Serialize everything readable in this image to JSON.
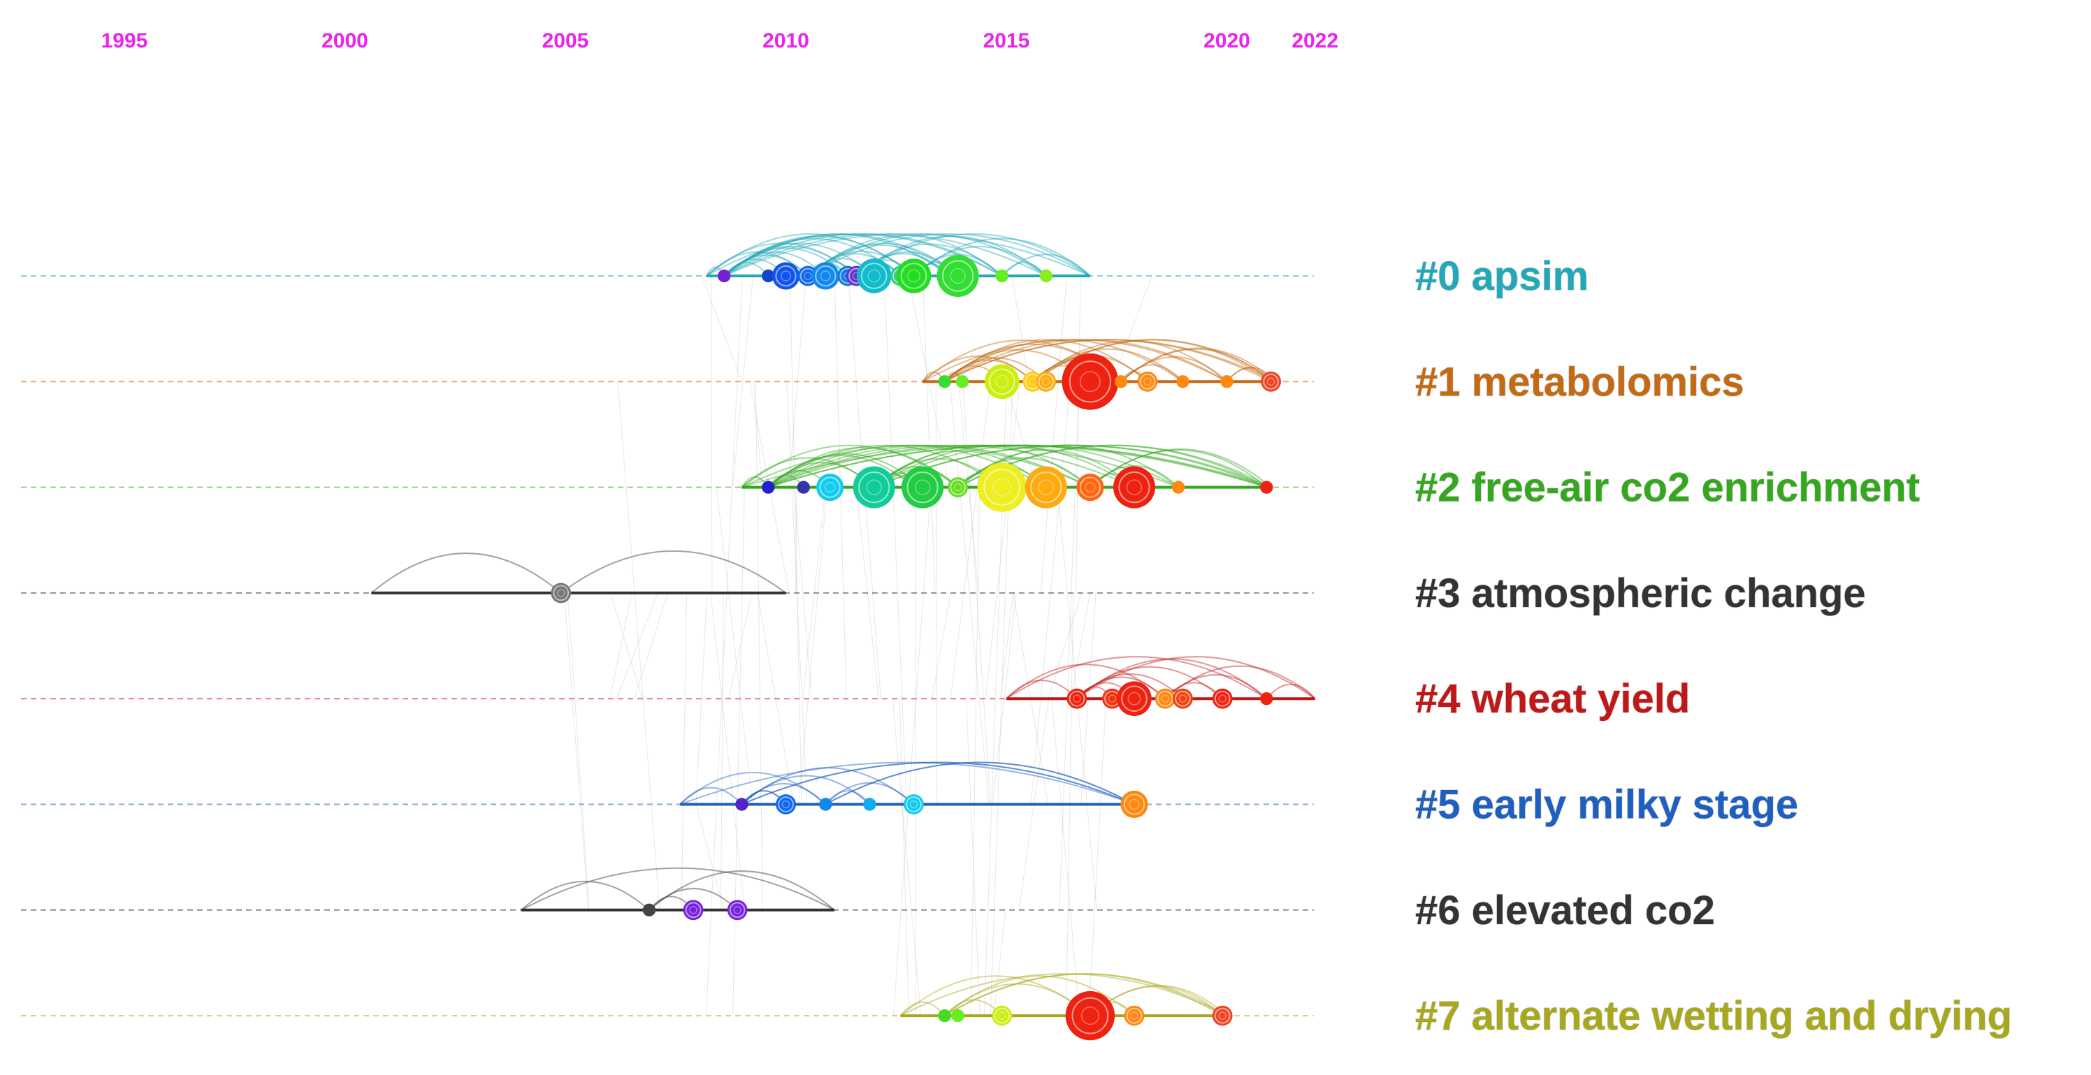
{
  "chart_data": {
    "type": "timeline",
    "x_axis": {
      "ticks": [
        "1995",
        "2000",
        "2005",
        "2010",
        "2015",
        "2020",
        "2022"
      ],
      "range": [
        1993,
        2022
      ],
      "tick_color": "#ee22ee"
    },
    "clusters": [
      {
        "id": "0",
        "label": "#0 apsim",
        "color": "#23a8b8",
        "span": [
          2008.2,
          2016.9
        ],
        "nodes": [
          {
            "year": 2008.6,
            "size": 1,
            "color": "#7722cc"
          },
          {
            "year": 2009.6,
            "size": 1,
            "color": "#1144cc"
          },
          {
            "year": 2010,
            "size": 3,
            "color": "#1155ee"
          },
          {
            "year": 2010.5,
            "size": 2,
            "color": "#1166ee"
          },
          {
            "year": 2010.9,
            "size": 3,
            "color": "#1188ee"
          },
          {
            "year": 2011.4,
            "size": 2,
            "color": "#1177dd"
          },
          {
            "year": 2011.6,
            "size": 2,
            "color": "#6633cc"
          },
          {
            "year": 2012,
            "size": 4,
            "color": "#11bbcc"
          },
          {
            "year": 2012.6,
            "size": 2,
            "color": "#33cc88"
          },
          {
            "year": 2012.9,
            "size": 4,
            "color": "#22dd22"
          },
          {
            "year": 2013.7,
            "size": 1,
            "color": "#44dd22"
          },
          {
            "year": 2013.9,
            "size": 5,
            "color": "#33dd33"
          },
          {
            "year": 2014.9,
            "size": 1,
            "color": "#66ee22"
          },
          {
            "year": 2015.9,
            "size": 1,
            "color": "#88ee22"
          }
        ]
      },
      {
        "id": "1",
        "label": "#1 metabolomics",
        "color": "#c46a14",
        "span": [
          2013.1,
          2021.1
        ],
        "nodes": [
          {
            "year": 2013.6,
            "size": 1,
            "color": "#33dd33"
          },
          {
            "year": 2014,
            "size": 1,
            "color": "#66ee22"
          },
          {
            "year": 2014.9,
            "size": 4,
            "color": "#ccee11"
          },
          {
            "year": 2015.6,
            "size": 2,
            "color": "#ffcc11"
          },
          {
            "year": 2015.9,
            "size": 2,
            "color": "#ffaa11"
          },
          {
            "year": 2016.9,
            "size": 7,
            "color": "#ee2211"
          },
          {
            "year": 2017.6,
            "size": 1,
            "color": "#ff8811"
          },
          {
            "year": 2018.2,
            "size": 2,
            "color": "#ff8811"
          },
          {
            "year": 2019,
            "size": 1,
            "color": "#ff8811"
          },
          {
            "year": 2020,
            "size": 1,
            "color": "#ff8811"
          },
          {
            "year": 2021,
            "size": 2,
            "color": "#ee4422"
          }
        ]
      },
      {
        "id": "2",
        "label": "#2 free-air co2 enrichment",
        "color": "#33a81e",
        "span": [
          2009,
          2021
        ],
        "nodes": [
          {
            "year": 2009.6,
            "size": 1,
            "color": "#2222cc"
          },
          {
            "year": 2010.4,
            "size": 1,
            "color": "#3333aa"
          },
          {
            "year": 2011,
            "size": 3,
            "color": "#11ccee"
          },
          {
            "year": 2012,
            "size": 5,
            "color": "#11cc99"
          },
          {
            "year": 2012.9,
            "size": 1,
            "color": "#1155ee"
          },
          {
            "year": 2013.1,
            "size": 5,
            "color": "#22cc44"
          },
          {
            "year": 2013.9,
            "size": 2,
            "color": "#66dd22"
          },
          {
            "year": 2014.9,
            "size": 6,
            "color": "#eeee22"
          },
          {
            "year": 2015.9,
            "size": 5,
            "color": "#ffaa11"
          },
          {
            "year": 2016.9,
            "size": 3,
            "color": "#ff6611"
          },
          {
            "year": 2017.9,
            "size": 5,
            "color": "#ee2211"
          },
          {
            "year": 2018.9,
            "size": 1,
            "color": "#ff8811"
          },
          {
            "year": 2020.9,
            "size": 1,
            "color": "#ee2211"
          }
        ]
      },
      {
        "id": "3",
        "label": "#3 atmospheric change",
        "color": "#333333",
        "span": [
          2000.6,
          2010
        ],
        "nodes": [
          {
            "year": 2004.9,
            "size": 2,
            "color": "#777777"
          }
        ]
      },
      {
        "id": "4",
        "label": "#4 wheat yield",
        "color": "#c01818",
        "span": [
          2015,
          2022
        ],
        "nodes": [
          {
            "year": 2016.6,
            "size": 2,
            "color": "#ee2211"
          },
          {
            "year": 2017.4,
            "size": 2,
            "color": "#ee3311"
          },
          {
            "year": 2017.9,
            "size": 4,
            "color": "#ee2211"
          },
          {
            "year": 2018.6,
            "size": 2,
            "color": "#ff8811"
          },
          {
            "year": 2019,
            "size": 2,
            "color": "#ee4411"
          },
          {
            "year": 2019.9,
            "size": 2,
            "color": "#ee2211"
          },
          {
            "year": 2020.9,
            "size": 1,
            "color": "#ee2211"
          }
        ]
      },
      {
        "id": "5",
        "label": "#5 early milky stage",
        "color": "#1f5fbf",
        "span": [
          2007.6,
          2017.9
        ],
        "nodes": [
          {
            "year": 2009,
            "size": 1,
            "color": "#5522cc"
          },
          {
            "year": 2010,
            "size": 1,
            "color": "#3355cc"
          },
          {
            "year": 2010,
            "size": 2,
            "color": "#1166ee"
          },
          {
            "year": 2010.9,
            "size": 1,
            "color": "#1188ee"
          },
          {
            "year": 2011.9,
            "size": 1,
            "color": "#11aaee"
          },
          {
            "year": 2012.9,
            "size": 2,
            "color": "#11ccee"
          },
          {
            "year": 2017.9,
            "size": 3,
            "color": "#ff8811"
          }
        ]
      },
      {
        "id": "6",
        "label": "#6 elevated co2",
        "color": "#333333",
        "span": [
          2004,
          2011.1
        ],
        "nodes": [
          {
            "year": 2006.9,
            "size": 1,
            "color": "#444444"
          },
          {
            "year": 2007.9,
            "size": 2,
            "color": "#7722dd"
          },
          {
            "year": 2008.9,
            "size": 2,
            "color": "#7722dd"
          }
        ]
      },
      {
        "id": "7",
        "label": "#7 alternate wetting and drying",
        "color": "#a8a81e",
        "span": [
          2012.6,
          2020
        ],
        "nodes": [
          {
            "year": 2013.6,
            "size": 1,
            "color": "#44dd22"
          },
          {
            "year": 2013.9,
            "size": 1,
            "color": "#66ee22"
          },
          {
            "year": 2014.9,
            "size": 2,
            "color": "#ccee11"
          },
          {
            "year": 2016.9,
            "size": 6,
            "color": "#ee2211"
          },
          {
            "year": 2017.9,
            "size": 2,
            "color": "#ff8811"
          },
          {
            "year": 2019.9,
            "size": 2,
            "color": "#ee4422"
          }
        ]
      }
    ]
  }
}
